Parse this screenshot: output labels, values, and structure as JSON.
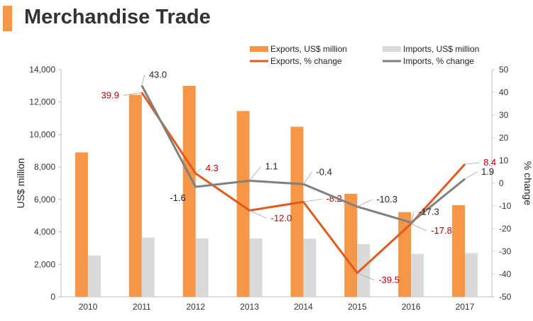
{
  "header": {
    "title": "Merchandise Trade",
    "accent_color": "#F79646"
  },
  "chart_data": {
    "type": "bar",
    "combo": "bar-line",
    "categories": [
      "2010",
      "2011",
      "2012",
      "2013",
      "2014",
      "2015",
      "2016",
      "2017"
    ],
    "ylabel": "US$ million",
    "y2label": "% change",
    "ylim": [
      0,
      14000
    ],
    "y2lim": [
      -50,
      50
    ],
    "yticks": [
      0,
      2000,
      4000,
      6000,
      8000,
      10000,
      12000,
      14000
    ],
    "yticklabels": [
      "0",
      "2,000",
      "4,000",
      "6,000",
      "8,000",
      "10,000",
      "12,000",
      "14,000"
    ],
    "y2ticks": [
      -50,
      -40,
      -30,
      -20,
      -10,
      0,
      10,
      20,
      30,
      40,
      50
    ],
    "y2ticklabels": [
      "-50",
      "-40",
      "-30",
      "-20",
      "-10",
      "0",
      "10",
      "20",
      "30",
      "40",
      "50"
    ],
    "grid": false,
    "legend_position": "top-right",
    "bar_series": [
      {
        "name": "Exports, US$ million",
        "color": "#F79646",
        "values": [
          8900,
          12450,
          13000,
          11450,
          10480,
          6350,
          5220,
          5650
        ]
      },
      {
        "name": "Imports, US$ million",
        "color": "#D9D9D9",
        "values": [
          2550,
          3650,
          3600,
          3600,
          3580,
          3250,
          2650,
          2700
        ]
      }
    ],
    "line_series": [
      {
        "name": "Exports, % change",
        "color": "#E05A1E",
        "label_color": "#C00000",
        "values": [
          null,
          39.9,
          4.3,
          -12.0,
          -8.2,
          -39.5,
          -17.8,
          8.4
        ],
        "labels": [
          "",
          "39.9",
          "4.3",
          "-12.0",
          "-8.2",
          "-39.5",
          "-17.8",
          "8.4"
        ]
      },
      {
        "name": "Imports, % change",
        "color": "#808080",
        "label_color": "#222222",
        "values": [
          null,
          43.0,
          -1.6,
          1.1,
          -0.4,
          -10.3,
          -17.3,
          1.9
        ],
        "labels": [
          "",
          "43.0",
          "-1.6",
          "1.1",
          "-0.4",
          "-10.3",
          "-17.3",
          "1.9"
        ]
      }
    ]
  }
}
